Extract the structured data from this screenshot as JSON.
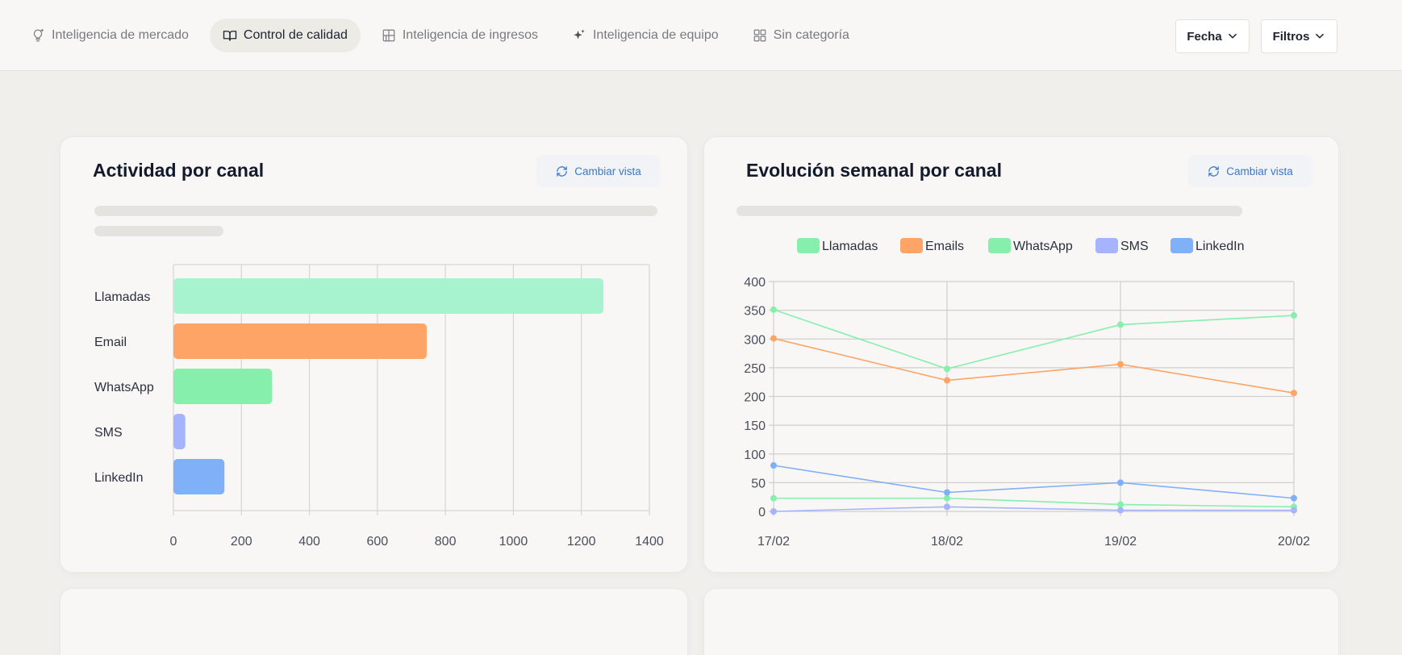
{
  "nav": {
    "tabs": [
      {
        "label": "Inteligencia de mercado",
        "icon": "lightbulb-icon",
        "active": false
      },
      {
        "label": "Control de calidad",
        "icon": "book-open-icon",
        "active": true
      },
      {
        "label": "Inteligencia de ingresos",
        "icon": "layout-grid-icon",
        "active": false
      },
      {
        "label": "Inteligencia de equipo",
        "icon": "sparkles-icon",
        "active": false
      },
      {
        "label": "Sin categoría",
        "icon": "grid-icon",
        "active": false
      }
    ],
    "date_button": "Fecha",
    "filters_button": "Filtros"
  },
  "cards": {
    "activity": {
      "title": "Actividad por canal",
      "switch_label": "Cambiar vista"
    },
    "weekly": {
      "title": "Evolución semanal por canal",
      "switch_label": "Cambiar vista"
    }
  },
  "chart_data": [
    {
      "type": "bar",
      "orientation": "horizontal",
      "categories": [
        "Llamadas",
        "Email",
        "WhatsApp",
        "SMS",
        "LinkedIn"
      ],
      "values": [
        1265,
        745,
        290,
        35,
        150
      ],
      "colors": [
        "#a7f3d0",
        "#fda466",
        "#86efac",
        "#a5b4fc",
        "#7fb0f8"
      ],
      "xlim": [
        0,
        1400
      ],
      "xticks": [
        0,
        200,
        400,
        600,
        800,
        1000,
        1200,
        1400
      ],
      "grid": true
    },
    {
      "type": "line",
      "x": [
        "17/02",
        "18/02",
        "19/02",
        "20/02"
      ],
      "ylim": [
        0,
        400
      ],
      "yticks": [
        0,
        50,
        100,
        150,
        200,
        250,
        300,
        350,
        400
      ],
      "legend_position": "top",
      "grid": true,
      "series": [
        {
          "name": "Llamadas",
          "color": "#86efac",
          "values": [
            351,
            248,
            325,
            341
          ]
        },
        {
          "name": "Emails",
          "color": "#fda466",
          "values": [
            301,
            228,
            256,
            206
          ]
        },
        {
          "name": "WhatsApp",
          "color": "#86efac",
          "values": [
            23,
            23,
            12,
            8
          ]
        },
        {
          "name": "SMS",
          "color": "#a5b4fc",
          "values": [
            0,
            8,
            2,
            2
          ]
        },
        {
          "name": "LinkedIn",
          "color": "#7fb0f8",
          "values": [
            80,
            33,
            50,
            23
          ]
        }
      ]
    }
  ]
}
